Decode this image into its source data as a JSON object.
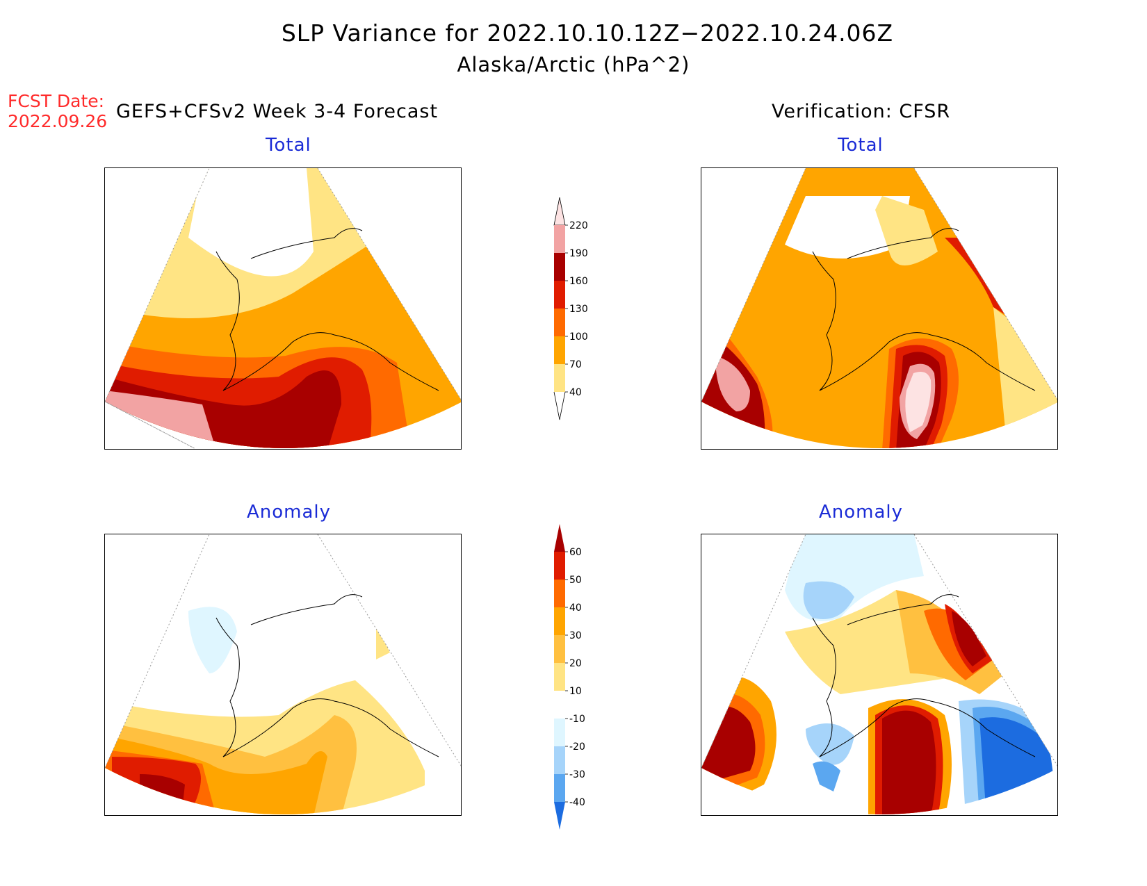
{
  "title": {
    "line1": "SLP Variance for 2022.10.10.12Z−2022.10.24.06Z",
    "line2": "Alaska/Arctic (hPa^2)"
  },
  "fcst_date": {
    "label": "FCST Date:",
    "value": "2022.09.26"
  },
  "columns": {
    "left_header": "GEFS+CFSv2 Week 3-4 Forecast",
    "right_header": "Verification: CFSR"
  },
  "panels": {
    "forecast_total": {
      "subtitle": "Total"
    },
    "verification_total": {
      "subtitle": "Total"
    },
    "forecast_anomaly": {
      "subtitle": "Anomaly"
    },
    "verification_anomaly": {
      "subtitle": "Anomaly"
    }
  },
  "colorbars": {
    "total": {
      "labels": [
        "220",
        "190",
        "160",
        "130",
        "100",
        "70",
        "40"
      ],
      "colors": [
        "#fde3e3",
        "#f2a3a3",
        "#a80000",
        "#e01c00",
        "#ff6a00",
        "#ffa500",
        "#ffe484"
      ]
    },
    "anomaly": {
      "labels": [
        "60",
        "50",
        "40",
        "30",
        "20",
        "10",
        "-10",
        "-20",
        "-30",
        "-40"
      ],
      "colors": [
        "#a80000",
        "#e01c00",
        "#ff6a00",
        "#ffa500",
        "#ffc040",
        "#ffe484",
        "#ffffff",
        "#dff6ff",
        "#a6d4fa",
        "#5ba7f0",
        "#1c6ce0"
      ]
    }
  },
  "colors": {
    "map_border": "#000000",
    "subtitle": "#1a2bd6",
    "fcst_date": "#ff2a2a"
  }
}
